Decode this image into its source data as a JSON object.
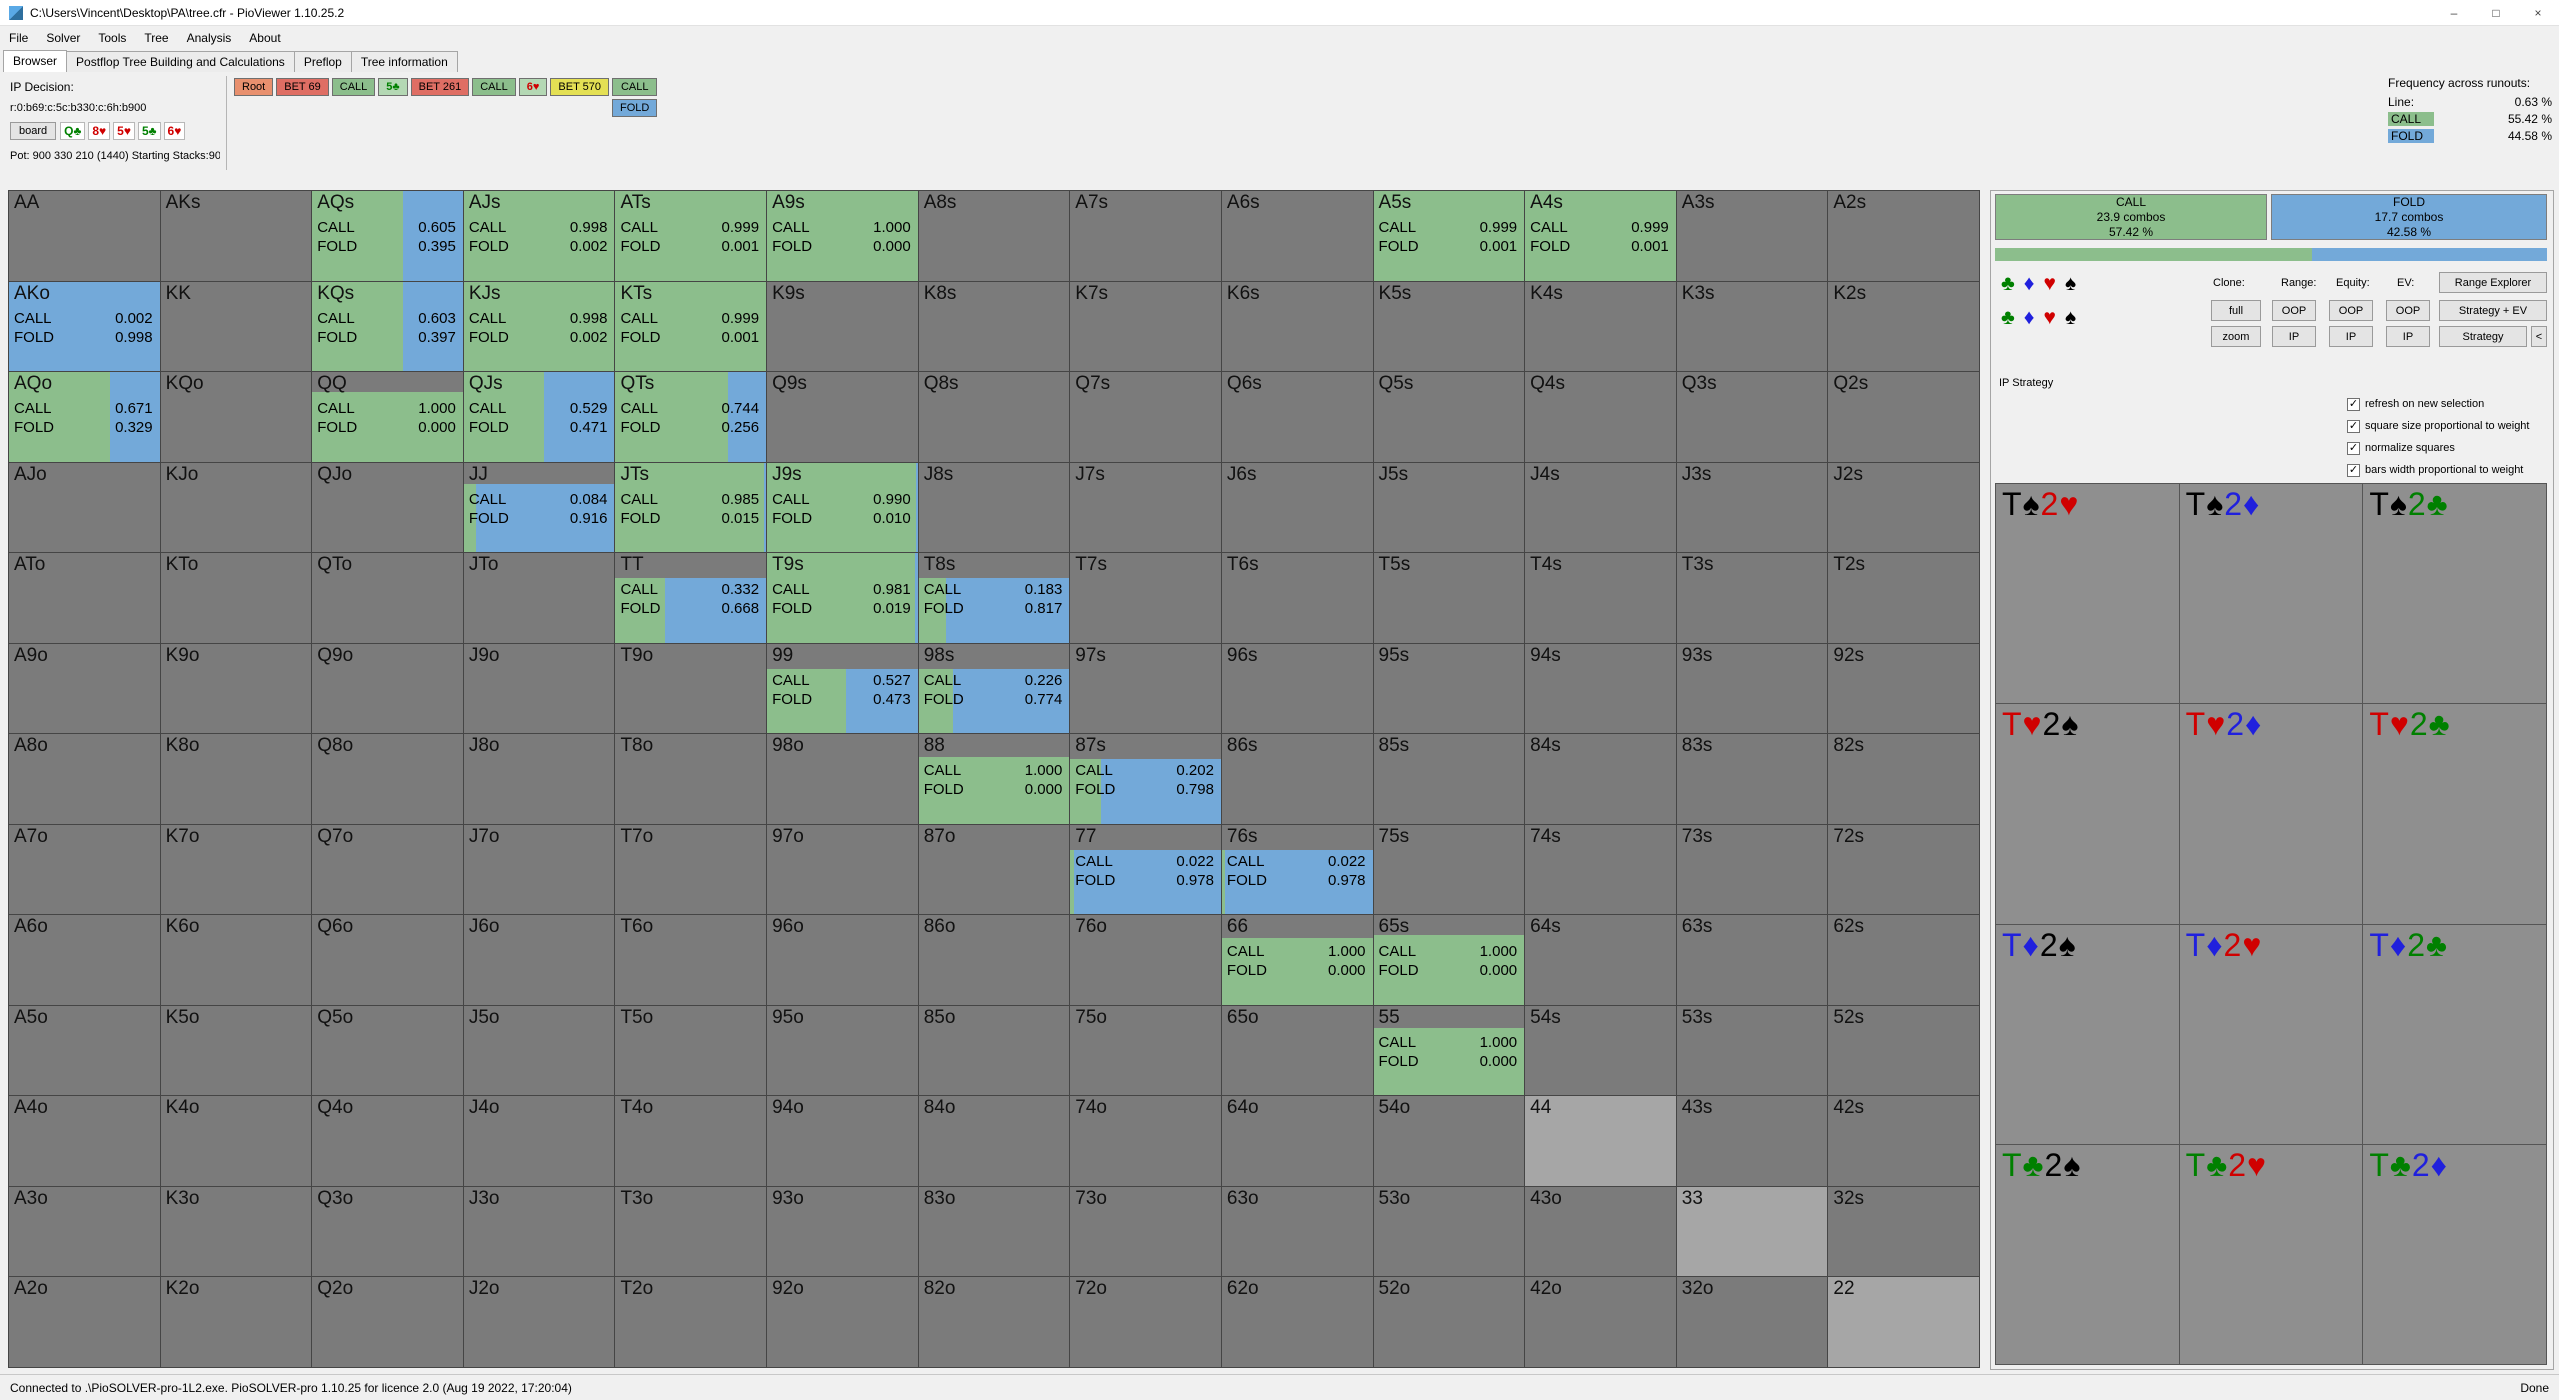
{
  "window": {
    "title": "C:\\Users\\Vincent\\Desktop\\PA\\tree.cfr - PioViewer 1.10.25.2",
    "minimize": "–",
    "maximize": "□",
    "close": "×"
  },
  "menu": {
    "items": [
      "File",
      "Solver",
      "Tools",
      "Tree",
      "Analysis",
      "About"
    ]
  },
  "tabs": {
    "items": [
      "Browser",
      "Postflop Tree Building and Calculations",
      "Preflop",
      "Tree information"
    ],
    "active": 0
  },
  "decision": {
    "label": "IP Decision:",
    "line": "r:0:b69:c:5c:b330:c:6h:b900",
    "board_button": "board",
    "board_cards": [
      {
        "text": "Q♣",
        "suit": "c",
        "name": "qc"
      },
      {
        "text": "8♥",
        "suit": "h",
        "name": "8h"
      },
      {
        "text": "5♥",
        "suit": "h",
        "name": "5h"
      },
      {
        "text": "5♣",
        "suit": "c",
        "name": "5c"
      },
      {
        "text": "6♥",
        "suit": "h",
        "name": "6h"
      }
    ],
    "pot": "Pot: 900 330 210 (1440) Starting Stacks:900",
    "nodes": [
      {
        "label": "Root",
        "type": "root",
        "name": "root"
      },
      {
        "label": "BET 69",
        "type": "bet",
        "name": "bet-69"
      },
      {
        "label": "CALL",
        "type": "call",
        "name": "call-flop"
      },
      {
        "label": "5♣",
        "type": "card",
        "suit": "c",
        "name": "card-5c"
      },
      {
        "label": "BET 261",
        "type": "bet",
        "name": "bet-261"
      },
      {
        "label": "CALL",
        "type": "call",
        "name": "call-turn"
      },
      {
        "label": "6♥",
        "type": "card",
        "suit": "h",
        "name": "card-6h"
      },
      {
        "label": "BET 570",
        "type": "allin",
        "name": "bet-570"
      }
    ],
    "actions": [
      {
        "label": "CALL",
        "type": "call",
        "name": "call"
      },
      {
        "label": "FOLD",
        "type": "fold",
        "name": "fold"
      }
    ]
  },
  "frequency": {
    "title": "Frequency across runouts:",
    "rows": [
      {
        "label": "Line:",
        "value": "0.63 %",
        "name": "line"
      },
      {
        "label": "CALL",
        "value": "55.42 %",
        "color": "green",
        "name": "call"
      },
      {
        "label": "FOLD",
        "value": "44.58 %",
        "color": "blue",
        "name": "fold"
      }
    ]
  },
  "suits": {
    "glyphs": {
      "c": "♣",
      "d": "♦",
      "h": "♥",
      "s": "♠"
    },
    "colors": {
      "c": "#008000",
      "d": "#2020dd",
      "h": "#d00000",
      "s": "#000000"
    },
    "names": {
      "c": "clubs",
      "d": "diamonds",
      "h": "hearts",
      "s": "spades"
    }
  },
  "colors": {
    "call_green": "#8CBE8C",
    "fold_blue": "#73A9D9",
    "in_range_gray": "#a6a6a6",
    "allin_yellow": "#E4E054",
    "bet_red": "#DF6E64",
    "root_orange": "#E8906E"
  },
  "grid": {
    "call_label": "CALL",
    "fold_label": "FOLD",
    "rows": [
      [
        {
          "h": "AA"
        },
        {
          "h": "AKs"
        },
        {
          "h": "AQs",
          "c": "0.605",
          "f": "0.395",
          "w": 1
        },
        {
          "h": "AJs",
          "c": "0.998",
          "f": "0.002",
          "w": 1
        },
        {
          "h": "ATs",
          "c": "0.999",
          "f": "0.001",
          "w": 1
        },
        {
          "h": "A9s",
          "c": "1.000",
          "f": "0.000",
          "w": 1
        },
        {
          "h": "A8s"
        },
        {
          "h": "A7s"
        },
        {
          "h": "A6s"
        },
        {
          "h": "A5s",
          "c": "0.999",
          "f": "0.001",
          "w": 1
        },
        {
          "h": "A4s",
          "c": "0.999",
          "f": "0.001",
          "w": 1
        },
        {
          "h": "A3s"
        },
        {
          "h": "A2s"
        }
      ],
      [
        {
          "h": "AKo",
          "c": "0.002",
          "f": "0.998",
          "w": 1
        },
        {
          "h": "KK"
        },
        {
          "h": "KQs",
          "c": "0.603",
          "f": "0.397",
          "w": 1
        },
        {
          "h": "KJs",
          "c": "0.998",
          "f": "0.002",
          "w": 1
        },
        {
          "h": "KTs",
          "c": "0.999",
          "f": "0.001",
          "w": 1
        },
        {
          "h": "K9s"
        },
        {
          "h": "K8s"
        },
        {
          "h": "K7s"
        },
        {
          "h": "K6s"
        },
        {
          "h": "K5s"
        },
        {
          "h": "K4s"
        },
        {
          "h": "K3s"
        },
        {
          "h": "K2s"
        }
      ],
      [
        {
          "h": "AQo",
          "c": "0.671",
          "f": "0.329",
          "w": 1
        },
        {
          "h": "KQo"
        },
        {
          "h": "QQ",
          "c": "1.000",
          "f": "0.000",
          "w": 0.78
        },
        {
          "h": "QJs",
          "c": "0.529",
          "f": "0.471",
          "w": 1
        },
        {
          "h": "QTs",
          "c": "0.744",
          "f": "0.256",
          "w": 1
        },
        {
          "h": "Q9s"
        },
        {
          "h": "Q8s"
        },
        {
          "h": "Q7s"
        },
        {
          "h": "Q6s"
        },
        {
          "h": "Q5s"
        },
        {
          "h": "Q4s"
        },
        {
          "h": "Q3s"
        },
        {
          "h": "Q2s"
        }
      ],
      [
        {
          "h": "AJo"
        },
        {
          "h": "KJo"
        },
        {
          "h": "QJo"
        },
        {
          "h": "JJ",
          "c": "0.084",
          "f": "0.916",
          "w": 0.76
        },
        {
          "h": "JTs",
          "c": "0.985",
          "f": "0.015",
          "w": 1
        },
        {
          "h": "J9s",
          "c": "0.990",
          "f": "0.010",
          "w": 1
        },
        {
          "h": "J8s"
        },
        {
          "h": "J7s"
        },
        {
          "h": "J6s"
        },
        {
          "h": "J5s"
        },
        {
          "h": "J4s"
        },
        {
          "h": "J3s"
        },
        {
          "h": "J2s"
        }
      ],
      [
        {
          "h": "ATo"
        },
        {
          "h": "KTo"
        },
        {
          "h": "QTo"
        },
        {
          "h": "JTo"
        },
        {
          "h": "TT",
          "c": "0.332",
          "f": "0.668",
          "w": 0.72
        },
        {
          "h": "T9s",
          "c": "0.981",
          "f": "0.019",
          "w": 1
        },
        {
          "h": "T8s",
          "c": "0.183",
          "f": "0.817",
          "w": 0.72
        },
        {
          "h": "T7s"
        },
        {
          "h": "T6s"
        },
        {
          "h": "T5s"
        },
        {
          "h": "T4s"
        },
        {
          "h": "T3s"
        },
        {
          "h": "T2s"
        }
      ],
      [
        {
          "h": "A9o"
        },
        {
          "h": "K9o"
        },
        {
          "h": "Q9o"
        },
        {
          "h": "J9o"
        },
        {
          "h": "T9o"
        },
        {
          "h": "99",
          "c": "0.527",
          "f": "0.473",
          "w": 0.72
        },
        {
          "h": "98s",
          "c": "0.226",
          "f": "0.774",
          "w": 0.72
        },
        {
          "h": "97s"
        },
        {
          "h": "96s"
        },
        {
          "h": "95s"
        },
        {
          "h": "94s"
        },
        {
          "h": "93s"
        },
        {
          "h": "92s"
        }
      ],
      [
        {
          "h": "A8o"
        },
        {
          "h": "K8o"
        },
        {
          "h": "Q8o"
        },
        {
          "h": "J8o"
        },
        {
          "h": "T8o"
        },
        {
          "h": "98o"
        },
        {
          "h": "88",
          "c": "1.000",
          "f": "0.000",
          "w": 0.75
        },
        {
          "h": "87s",
          "c": "0.202",
          "f": "0.798",
          "w": 0.72
        },
        {
          "h": "86s"
        },
        {
          "h": "85s"
        },
        {
          "h": "84s"
        },
        {
          "h": "83s"
        },
        {
          "h": "82s"
        }
      ],
      [
        {
          "h": "A7o"
        },
        {
          "h": "K7o"
        },
        {
          "h": "Q7o"
        },
        {
          "h": "J7o"
        },
        {
          "h": "T7o"
        },
        {
          "h": "97o"
        },
        {
          "h": "87o"
        },
        {
          "h": "77",
          "c": "0.022",
          "f": "0.978",
          "w": 0.72
        },
        {
          "h": "76s",
          "c": "0.022",
          "f": "0.978",
          "w": 0.72
        },
        {
          "h": "75s"
        },
        {
          "h": "74s"
        },
        {
          "h": "73s"
        },
        {
          "h": "72s"
        }
      ],
      [
        {
          "h": "A6o"
        },
        {
          "h": "K6o"
        },
        {
          "h": "Q6o"
        },
        {
          "h": "J6o"
        },
        {
          "h": "T6o"
        },
        {
          "h": "96o"
        },
        {
          "h": "86o"
        },
        {
          "h": "76o"
        },
        {
          "h": "66",
          "c": "1.000",
          "f": "0.000",
          "w": 0.75
        },
        {
          "h": "65s",
          "c": "1.000",
          "f": "0.000",
          "w": 0.78
        },
        {
          "h": "64s"
        },
        {
          "h": "63s"
        },
        {
          "h": "62s"
        }
      ],
      [
        {
          "h": "A5o"
        },
        {
          "h": "K5o"
        },
        {
          "h": "Q5o"
        },
        {
          "h": "J5o"
        },
        {
          "h": "T5o"
        },
        {
          "h": "95o"
        },
        {
          "h": "85o"
        },
        {
          "h": "75o"
        },
        {
          "h": "65o"
        },
        {
          "h": "55",
          "c": "1.000",
          "f": "0.000",
          "w": 0.75
        },
        {
          "h": "54s"
        },
        {
          "h": "53s"
        },
        {
          "h": "52s"
        }
      ],
      [
        {
          "h": "A4o"
        },
        {
          "h": "K4o"
        },
        {
          "h": "Q4o"
        },
        {
          "h": "J4o"
        },
        {
          "h": "T4o"
        },
        {
          "h": "94o"
        },
        {
          "h": "84o"
        },
        {
          "h": "74o"
        },
        {
          "h": "64o"
        },
        {
          "h": "54o"
        },
        {
          "h": "44",
          "lt": 1
        },
        {
          "h": "43s"
        },
        {
          "h": "42s"
        }
      ],
      [
        {
          "h": "A3o"
        },
        {
          "h": "K3o"
        },
        {
          "h": "Q3o"
        },
        {
          "h": "J3o"
        },
        {
          "h": "T3o"
        },
        {
          "h": "93o"
        },
        {
          "h": "83o"
        },
        {
          "h": "73o"
        },
        {
          "h": "63o"
        },
        {
          "h": "53o"
        },
        {
          "h": "43o"
        },
        {
          "h": "33",
          "lt": 1
        },
        {
          "h": "32s"
        }
      ],
      [
        {
          "h": "A2o"
        },
        {
          "h": "K2o"
        },
        {
          "h": "Q2o"
        },
        {
          "h": "J2o"
        },
        {
          "h": "T2o"
        },
        {
          "h": "92o"
        },
        {
          "h": "82o"
        },
        {
          "h": "72o"
        },
        {
          "h": "62o"
        },
        {
          "h": "52o"
        },
        {
          "h": "42o"
        },
        {
          "h": "32o"
        },
        {
          "h": "22",
          "lt": 1
        }
      ]
    ]
  },
  "panel": {
    "call_box": {
      "action": "CALL",
      "combos": "23.9 combos",
      "pct": "57.42 %"
    },
    "fold_box": {
      "action": "FOLD",
      "combos": "17.7 combos",
      "pct": "42.58 %"
    },
    "bar": {
      "call_pct": 57.42
    },
    "suit_rows": [
      [
        "c",
        "d",
        "h",
        "s"
      ],
      [
        "c",
        "d",
        "h",
        "s"
      ]
    ],
    "controls": {
      "clone_label": "Clone:",
      "range_label": "Range:",
      "equity_label": "Equity:",
      "ev_label": "EV:",
      "range_explorer": "Range Explorer",
      "full": "full",
      "zoom": "zoom",
      "oop": "OOP",
      "ip": "IP",
      "strategy_ev": "Strategy + EV",
      "strategy": "Strategy",
      "collapse": "<"
    },
    "strategy_label": "IP Strategy",
    "check_glyph": "✓",
    "checkboxes": [
      {
        "label": "refresh on new selection",
        "checked": true,
        "name": "refresh-on-new-selection"
      },
      {
        "label": "square size proportional to weight",
        "checked": true,
        "name": "square-size-proportional"
      },
      {
        "label": "normalize squares",
        "checked": true,
        "name": "normalize-squares"
      },
      {
        "label": "bars width proportional to weight",
        "checked": true,
        "name": "bars-width-proportional"
      }
    ],
    "combos": [
      {
        "r1": "T",
        "s1": "s",
        "r2": "2",
        "s2": "h"
      },
      {
        "r1": "T",
        "s1": "s",
        "r2": "2",
        "s2": "d"
      },
      {
        "r1": "T",
        "s1": "s",
        "r2": "2",
        "s2": "c"
      },
      {
        "r1": "T",
        "s1": "h",
        "r2": "2",
        "s2": "s"
      },
      {
        "r1": "T",
        "s1": "h",
        "r2": "2",
        "s2": "d"
      },
      {
        "r1": "T",
        "s1": "h",
        "r2": "2",
        "s2": "c"
      },
      {
        "r1": "T",
        "s1": "d",
        "r2": "2",
        "s2": "s"
      },
      {
        "r1": "T",
        "s1": "d",
        "r2": "2",
        "s2": "h"
      },
      {
        "r1": "T",
        "s1": "d",
        "r2": "2",
        "s2": "c"
      },
      {
        "r1": "T",
        "s1": "c",
        "r2": "2",
        "s2": "s"
      },
      {
        "r1": "T",
        "s1": "c",
        "r2": "2",
        "s2": "h"
      },
      {
        "r1": "T",
        "s1": "c",
        "r2": "2",
        "s2": "d"
      }
    ]
  },
  "statusbar": {
    "left": "Connected to .\\PioSOLVER-pro-1L2.exe. PioSOLVER-pro 1.10.25 for licence 2.0 (Aug 19 2022, 17:20:04)",
    "right": "Done"
  }
}
